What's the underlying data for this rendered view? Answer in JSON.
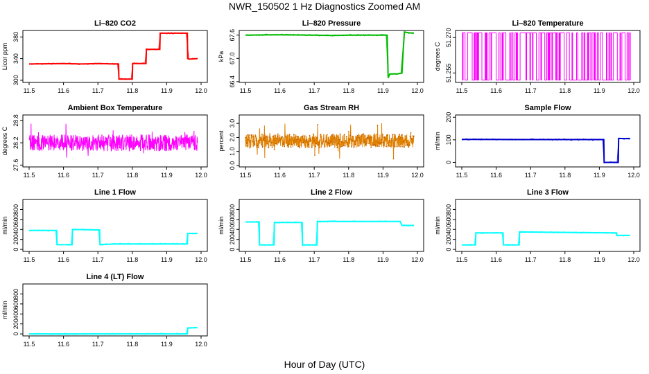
{
  "title": "NWR_150502  1 Hz Diagnostics Zoomed AM",
  "xlabel": "Hour of Day (UTC)",
  "chart_data": [
    {
      "type": "line",
      "title": "Li–820 CO2",
      "ylabel": "Licor ppm",
      "color": "#ff0000",
      "xlim": [
        11.5,
        12.0
      ],
      "ylim": [
        296,
        392
      ],
      "xticks": [
        "11.5",
        "11.6",
        "11.7",
        "11.8",
        "11.9",
        "12.0"
      ],
      "yticks": [
        {
          "v": 300,
          "label": "300"
        },
        {
          "v": 340,
          "label": "340"
        },
        {
          "v": 380,
          "label": "380"
        }
      ],
      "x": [
        11.5,
        11.6,
        11.65,
        11.7,
        11.75,
        11.76,
        11.761,
        11.8,
        11.801,
        11.84,
        11.841,
        11.88,
        11.881,
        11.96,
        11.961,
        11.965,
        11.99
      ],
      "y": [
        330,
        331,
        330,
        331,
        330,
        330,
        302,
        302,
        331,
        331,
        357,
        357,
        387,
        387,
        340,
        339,
        340
      ]
    },
    {
      "type": "line",
      "title": "Li–820 Pressure",
      "ylabel": "kPa",
      "color": "#00bb00",
      "xlim": [
        11.5,
        12.0
      ],
      "ylim": [
        66.38,
        67.72
      ],
      "xticks": [
        "11.5",
        "11.6",
        "11.7",
        "11.8",
        "11.9",
        "12.0"
      ],
      "yticks": [
        {
          "v": 66.4,
          "label": "66.4"
        },
        {
          "v": 67.0,
          "label": "67.0"
        },
        {
          "v": 67.6,
          "label": "67.6"
        }
      ],
      "x": [
        11.5,
        11.6,
        11.7,
        11.75,
        11.8,
        11.9,
        11.912,
        11.915,
        11.92,
        11.94,
        11.955,
        11.958,
        11.962,
        11.975,
        11.99
      ],
      "y": [
        67.6,
        67.61,
        67.6,
        67.59,
        67.6,
        67.6,
        67.6,
        66.5,
        66.6,
        66.6,
        66.62,
        67.1,
        67.68,
        67.66,
        67.65
      ]
    },
    {
      "type": "line",
      "title": "Li–820 Temperature",
      "ylabel": "degrees C",
      "color": "#ff00ff",
      "xlim": [
        11.5,
        12.0
      ],
      "ylim": [
        51.251,
        51.273
      ],
      "xticks": [
        "11.5",
        "11.6",
        "11.7",
        "11.8",
        "11.9",
        "12.0"
      ],
      "yticks": [
        {
          "v": 51.255,
          "label": "51.255"
        },
        {
          "v": 51.27,
          "label": "51.270"
        }
      ],
      "pattern": "toggling",
      "levels": [
        51.252,
        51.272
      ]
    },
    {
      "type": "line",
      "title": "Ambient Box Temperature",
      "ylabel": "degrees C",
      "color": "#ff00ff",
      "xlim": [
        11.5,
        12.0
      ],
      "ylim": [
        27.55,
        28.95
      ],
      "xticks": [
        "11.5",
        "11.6",
        "11.7",
        "11.8",
        "11.9",
        "12.0"
      ],
      "yticks": [
        {
          "v": 27.6,
          "label": "27.6"
        },
        {
          "v": 28.2,
          "label": "28.2"
        },
        {
          "v": 28.8,
          "label": "28.8"
        }
      ],
      "pattern": "noise",
      "mean": 28.2,
      "spread": 0.45
    },
    {
      "type": "line",
      "title": "Gas Stream RH",
      "ylabel": "percent",
      "color": "#e08000",
      "xlim": [
        11.5,
        12.0
      ],
      "ylim": [
        -0.1,
        3.6
      ],
      "xticks": [
        "11.5",
        "11.6",
        "11.7",
        "11.8",
        "11.9",
        "12.0"
      ],
      "yticks": [
        {
          "v": 0,
          "label": "0.0"
        },
        {
          "v": 1,
          "label": "1.0"
        },
        {
          "v": 2,
          "label": "2.0"
        },
        {
          "v": 3,
          "label": "3.0"
        }
      ],
      "pattern": "noise",
      "mean": 1.75,
      "spread": 1.0
    },
    {
      "type": "line",
      "title": "Sample Flow",
      "ylabel": "ml/min",
      "color": "#0000cc",
      "xlim": [
        11.5,
        12.0
      ],
      "ylim": [
        -20,
        210
      ],
      "xticks": [
        "11.5",
        "11.6",
        "11.7",
        "11.8",
        "11.9",
        "12.0"
      ],
      "yticks": [
        {
          "v": 0,
          "label": "0"
        },
        {
          "v": 100,
          "label": "100"
        },
        {
          "v": 200,
          "label": "200"
        }
      ],
      "x": [
        11.5,
        11.7,
        11.9,
        11.913,
        11.914,
        11.955,
        11.956,
        11.99
      ],
      "y": [
        102,
        101,
        101,
        101,
        0,
        0,
        106,
        105
      ]
    },
    {
      "type": "line",
      "title": "Line 1 Flow",
      "ylabel": "ml/min",
      "color": "#00ffff",
      "xlim": [
        11.5,
        12.0
      ],
      "ylim": [
        -40,
        1000
      ],
      "xticks": [
        "11.5",
        "11.6",
        "11.7",
        "11.8",
        "11.9",
        "12.0"
      ],
      "yticks": [
        {
          "v": 0,
          "label": "0"
        },
        {
          "v": 200,
          "label": "200"
        },
        {
          "v": 400,
          "label": "400"
        },
        {
          "v": 600,
          "label": "600"
        },
        {
          "v": 800,
          "label": "800"
        }
      ],
      "x": [
        11.5,
        11.58,
        11.581,
        11.625,
        11.626,
        11.705,
        11.706,
        11.75,
        11.96,
        11.961,
        11.99
      ],
      "y": [
        380,
        380,
        95,
        95,
        400,
        390,
        95,
        110,
        110,
        320,
        320
      ]
    },
    {
      "type": "line",
      "title": "Line 2 Flow",
      "ylabel": "ml/min",
      "color": "#00ffff",
      "xlim": [
        11.5,
        12.0
      ],
      "ylim": [
        -40,
        1000
      ],
      "xticks": [
        "11.5",
        "11.6",
        "11.7",
        "11.8",
        "11.9",
        "12.0"
      ],
      "yticks": [
        {
          "v": 0,
          "label": "0"
        },
        {
          "v": 200,
          "label": "200"
        },
        {
          "v": 400,
          "label": "400"
        },
        {
          "v": 600,
          "label": "600"
        },
        {
          "v": 800,
          "label": "800"
        }
      ],
      "x": [
        11.5,
        11.54,
        11.541,
        11.583,
        11.584,
        11.665,
        11.666,
        11.708,
        11.709,
        11.95,
        11.955,
        11.99
      ],
      "y": [
        550,
        550,
        90,
        90,
        540,
        540,
        90,
        90,
        560,
        560,
        480,
        480
      ]
    },
    {
      "type": "line",
      "title": "Line 3 Flow",
      "ylabel": "ml/min",
      "color": "#00ffff",
      "xlim": [
        11.5,
        12.0
      ],
      "ylim": [
        -40,
        1000
      ],
      "xticks": [
        "11.5",
        "11.6",
        "11.7",
        "11.8",
        "11.9",
        "12.0"
      ],
      "yticks": [
        {
          "v": 0,
          "label": "0"
        },
        {
          "v": 200,
          "label": "200"
        },
        {
          "v": 400,
          "label": "400"
        },
        {
          "v": 600,
          "label": "600"
        },
        {
          "v": 800,
          "label": "800"
        }
      ],
      "x": [
        11.5,
        11.54,
        11.541,
        11.62,
        11.621,
        11.667,
        11.668,
        11.8,
        11.95,
        11.951,
        11.99
      ],
      "y": [
        90,
        90,
        330,
        330,
        90,
        90,
        350,
        340,
        330,
        280,
        280
      ]
    },
    {
      "type": "line",
      "title": "Line 4 (LT) Flow",
      "ylabel": "ml/min",
      "color": "#00ffff",
      "xlim": [
        11.5,
        12.0
      ],
      "ylim": [
        -40,
        1000
      ],
      "xticks": [
        "11.5",
        "11.6",
        "11.7",
        "11.8",
        "11.9",
        "12.0"
      ],
      "yticks": [
        {
          "v": 0,
          "label": "0"
        },
        {
          "v": 200,
          "label": "200"
        },
        {
          "v": 400,
          "label": "400"
        },
        {
          "v": 600,
          "label": "600"
        },
        {
          "v": 800,
          "label": "800"
        }
      ],
      "x": [
        11.5,
        11.96,
        11.961,
        11.99
      ],
      "y": [
        0,
        0,
        120,
        125
      ]
    }
  ]
}
